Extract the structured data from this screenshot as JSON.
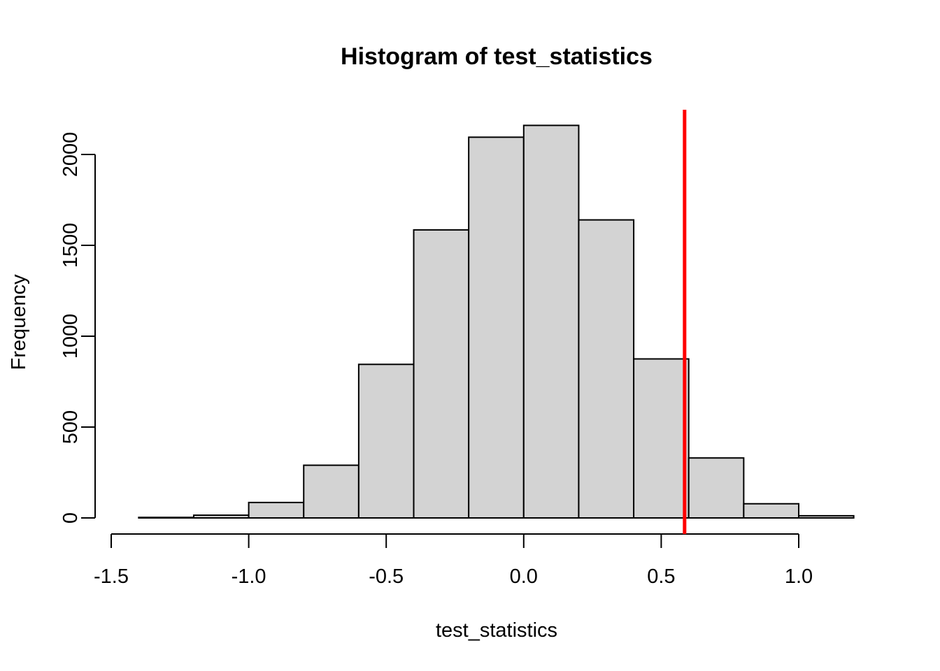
{
  "chart_data": {
    "type": "bar",
    "subtype": "histogram",
    "title": "Histogram of test_statistics",
    "xlabel": "test_statistics",
    "ylabel": "Frequency",
    "bin_edges": [
      -1.4,
      -1.2,
      -1.0,
      -0.8,
      -0.6,
      -0.4,
      -0.2,
      0.0,
      0.2,
      0.4,
      0.6,
      0.8,
      1.0,
      1.2
    ],
    "values": [
      3,
      15,
      85,
      290,
      845,
      1585,
      2095,
      2160,
      1640,
      875,
      330,
      78,
      12
    ],
    "xlim": [
      -1.5,
      1.2
    ],
    "ylim": [
      0,
      2240
    ],
    "x_ticks": [
      -1.5,
      -1.0,
      -0.5,
      0.0,
      0.5,
      1.0
    ],
    "x_tick_labels": [
      "-1.5",
      "-1.0",
      "-0.5",
      "0.0",
      "0.5",
      "1.0"
    ],
    "y_ticks": [
      0,
      500,
      1000,
      1500,
      2000
    ],
    "y_tick_labels": [
      "0",
      "500",
      "1000",
      "1500",
      "2000"
    ],
    "bar_fill": "#d3d3d3",
    "bar_stroke": "#000000",
    "reference_line": {
      "x": 0.585,
      "color": "#ff0000"
    },
    "grid": false,
    "legend": "none"
  }
}
